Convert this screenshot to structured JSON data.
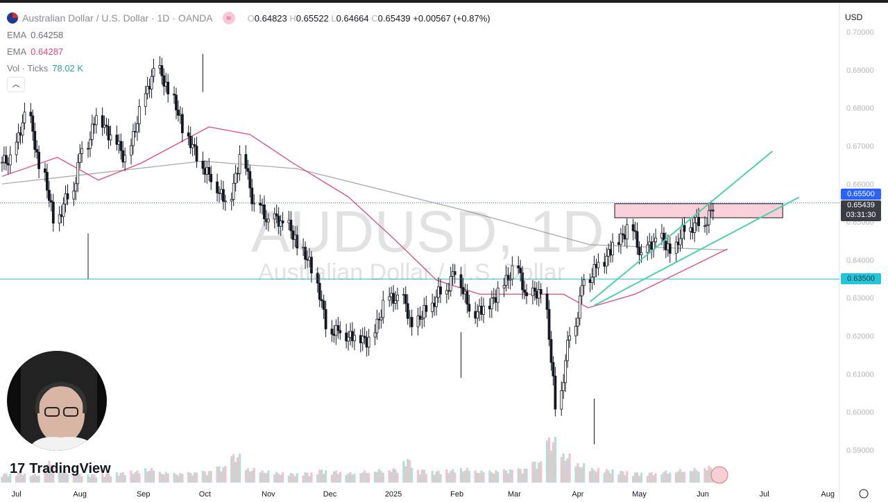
{
  "header": {
    "symbol_title": "Australian Dollar / U.S. Dollar · 1D · OANDA",
    "compare_icon": "approx-equal-icon",
    "ohlc": {
      "o_label": "O",
      "o": "0.64823",
      "h_label": "H",
      "h": "0.65522",
      "l_label": "L",
      "l": "0.64664",
      "c_label": "C",
      "c": "0.65439",
      "change": "+0.00567 (+0.87%)"
    }
  },
  "indicators": [
    {
      "name": "EMA",
      "value": "0.64258",
      "color": "#9e9e9e"
    },
    {
      "name": "EMA",
      "value": "0.64287",
      "color": "#e0457b"
    },
    {
      "name": "Vol · Ticks",
      "value": "78.02 K",
      "color": "#26a69a"
    }
  ],
  "currency": "USD",
  "watermark": {
    "symbol": "AUDUSD, 1D",
    "description": "Australian Dollar / U.S. Dollar"
  },
  "brand": "TradingView",
  "price_tags": {
    "level_high": "0.65500",
    "last_price": "0.65439",
    "countdown": "03:31:30",
    "level_low": "0.63500"
  },
  "colors": {
    "up": "#131722",
    "down": "#131722",
    "ema_fast": "#e0457b",
    "ema_slow": "#a9a9a9",
    "level_high": "#2962ff",
    "level_low": "#26c6da",
    "channel": "#4dd0a7",
    "zone": "#f8c8d4",
    "vol_up": "#b2dfdb",
    "vol_down": "#f7c1c8"
  },
  "chart_data": {
    "type": "candlestick",
    "title": "AUDUSD, 1D",
    "y_ticks": [
      "0.70000",
      "0.69000",
      "0.68000",
      "0.67000",
      "0.66000",
      "0.65000",
      "0.64000",
      "0.63000",
      "0.62000",
      "0.61000",
      "0.60000",
      "0.59000"
    ],
    "ylim": [
      0.5875,
      0.7035
    ],
    "x_ticks": [
      {
        "label": "Jul",
        "date": "2024-07-01"
      },
      {
        "label": "Aug",
        "date": "2024-08-01"
      },
      {
        "label": "Sep",
        "date": "2024-09-01"
      },
      {
        "label": "Oct",
        "date": "2024-10-01"
      },
      {
        "label": "Nov",
        "date": "2024-11-01"
      },
      {
        "label": "Dec",
        "date": "2024-12-01"
      },
      {
        "label": "2025",
        "date": "2025-01-01"
      },
      {
        "label": "Feb",
        "date": "2025-02-01"
      },
      {
        "label": "Mar",
        "date": "2025-03-01"
      },
      {
        "label": "Apr",
        "date": "2025-04-01"
      },
      {
        "label": "May",
        "date": "2025-05-01"
      },
      {
        "label": "Jun",
        "date": "2025-06-01"
      },
      {
        "label": "Jul",
        "date": "2025-07-01"
      },
      {
        "label": "Aug",
        "date": "2025-08-01"
      }
    ],
    "xlim": [
      "2024-06-23",
      "2025-08-27"
    ],
    "weekly_start": "2024-06-24",
    "weekly_close": [
      0.6657,
      0.6776,
      0.664,
      0.651,
      0.658,
      0.671,
      0.6785,
      0.672,
      0.6657,
      0.6785,
      0.6894,
      0.684,
      0.675,
      0.668,
      0.662,
      0.6557,
      0.6666,
      0.653,
      0.649,
      0.649,
      0.6438,
      0.6383,
      0.6238,
      0.622,
      0.62,
      0.6183,
      0.6274,
      0.6292,
      0.622,
      0.6274,
      0.6329,
      0.638,
      0.6274,
      0.6274,
      0.631,
      0.6365,
      0.6292,
      0.631,
      0.602,
      0.622,
      0.6365,
      0.64,
      0.6438,
      0.6475,
      0.64,
      0.6447,
      0.642,
      0.649,
      0.651,
      0.6544
    ],
    "notable_lows": [
      {
        "date": "2024-08-05",
        "value": 0.635
      },
      {
        "date": "2025-02-03",
        "value": 0.609
      },
      {
        "date": "2025-04-09",
        "value": 0.5915
      }
    ],
    "notable_highs": [
      {
        "date": "2024-09-30",
        "value": 0.6942
      }
    ],
    "weekly_volume": [
      20,
      22,
      18,
      45,
      25,
      20,
      18,
      20,
      22,
      25,
      30,
      22,
      20,
      22,
      25,
      35,
      60,
      30,
      25,
      22,
      20,
      22,
      28,
      25,
      22,
      25,
      28,
      30,
      50,
      28,
      25,
      28,
      30,
      25,
      25,
      28,
      30,
      45,
      95,
      60,
      40,
      30,
      28,
      25,
      22,
      22,
      25,
      28,
      30,
      35
    ],
    "ema_slow": [
      [
        "2024-06-24",
        0.66
      ],
      [
        "2024-09-30",
        0.666
      ],
      [
        "2024-11-15",
        0.664
      ],
      [
        "2025-02-05",
        0.653
      ],
      [
        "2025-04-07",
        0.644
      ],
      [
        "2025-06-13",
        0.6426
      ]
    ],
    "ema_fast": [
      [
        "2024-06-24",
        0.662
      ],
      [
        "2024-07-21",
        0.667
      ],
      [
        "2024-08-10",
        0.661
      ],
      [
        "2024-08-31",
        0.6655
      ],
      [
        "2024-10-03",
        0.675
      ],
      [
        "2024-10-23",
        0.673
      ],
      [
        "2024-11-13",
        0.6655
      ],
      [
        "2024-12-10",
        0.6566
      ],
      [
        "2025-01-01",
        0.6457
      ],
      [
        "2025-01-22",
        0.6347
      ],
      [
        "2025-02-12",
        0.631
      ],
      [
        "2025-03-25",
        0.631
      ],
      [
        "2025-04-06",
        0.6274
      ],
      [
        "2025-04-29",
        0.631
      ],
      [
        "2025-06-13",
        0.6429
      ]
    ],
    "horizontal_levels": [
      0.655,
      0.635
    ],
    "zone": {
      "from": "2025-04-19",
      "to": "2025-07-10",
      "top": 0.6548,
      "bottom": 0.6511
    },
    "channel": {
      "upper": [
        [
          "2025-04-07",
          0.629
        ],
        [
          "2025-07-05",
          0.6686
        ]
      ],
      "lower": [
        [
          "2025-04-09",
          0.628
        ],
        [
          "2025-07-18",
          0.6565
        ]
      ]
    }
  }
}
